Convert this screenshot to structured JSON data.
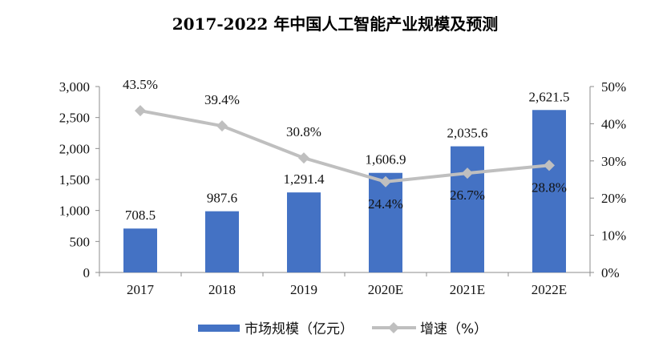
{
  "chart_data": {
    "type": "bar+line",
    "title": "2017-2022 年中国人工智能产业规模及预测",
    "categories": [
      "2017",
      "2018",
      "2019",
      "2020E",
      "2021E",
      "2022E"
    ],
    "series": [
      {
        "name": "市场规模（亿元）",
        "type": "bar",
        "axis": "left",
        "values": [
          708.5,
          987.6,
          1291.4,
          1606.9,
          2035.6,
          2621.5
        ],
        "labels": [
          "708.5",
          "987.6",
          "1,291.4",
          "1,606.9",
          "2,035.6",
          "2,621.5"
        ],
        "color": "#4472C4"
      },
      {
        "name": "增速（%）",
        "type": "line",
        "axis": "right",
        "values": [
          43.5,
          39.4,
          30.8,
          24.4,
          26.7,
          28.8
        ],
        "labels": [
          "43.5%",
          "39.4%",
          "30.8%",
          "24.4%",
          "26.7%",
          "28.8%"
        ],
        "color": "#BFBFBF"
      }
    ],
    "y_left": {
      "lim": [
        0,
        3000
      ],
      "ticks": [
        0,
        500,
        1000,
        1500,
        2000,
        2500,
        3000
      ],
      "tick_labels": [
        "0",
        "500",
        "1,000",
        "1,500",
        "2,000",
        "2,500",
        "3,000"
      ]
    },
    "y_right": {
      "lim": [
        0,
        50
      ],
      "ticks": [
        0,
        10,
        20,
        30,
        40,
        50
      ],
      "tick_labels": [
        "0%",
        "10%",
        "20%",
        "30%",
        "40%",
        "50%"
      ]
    },
    "grid": false,
    "legend_position": "bottom"
  }
}
